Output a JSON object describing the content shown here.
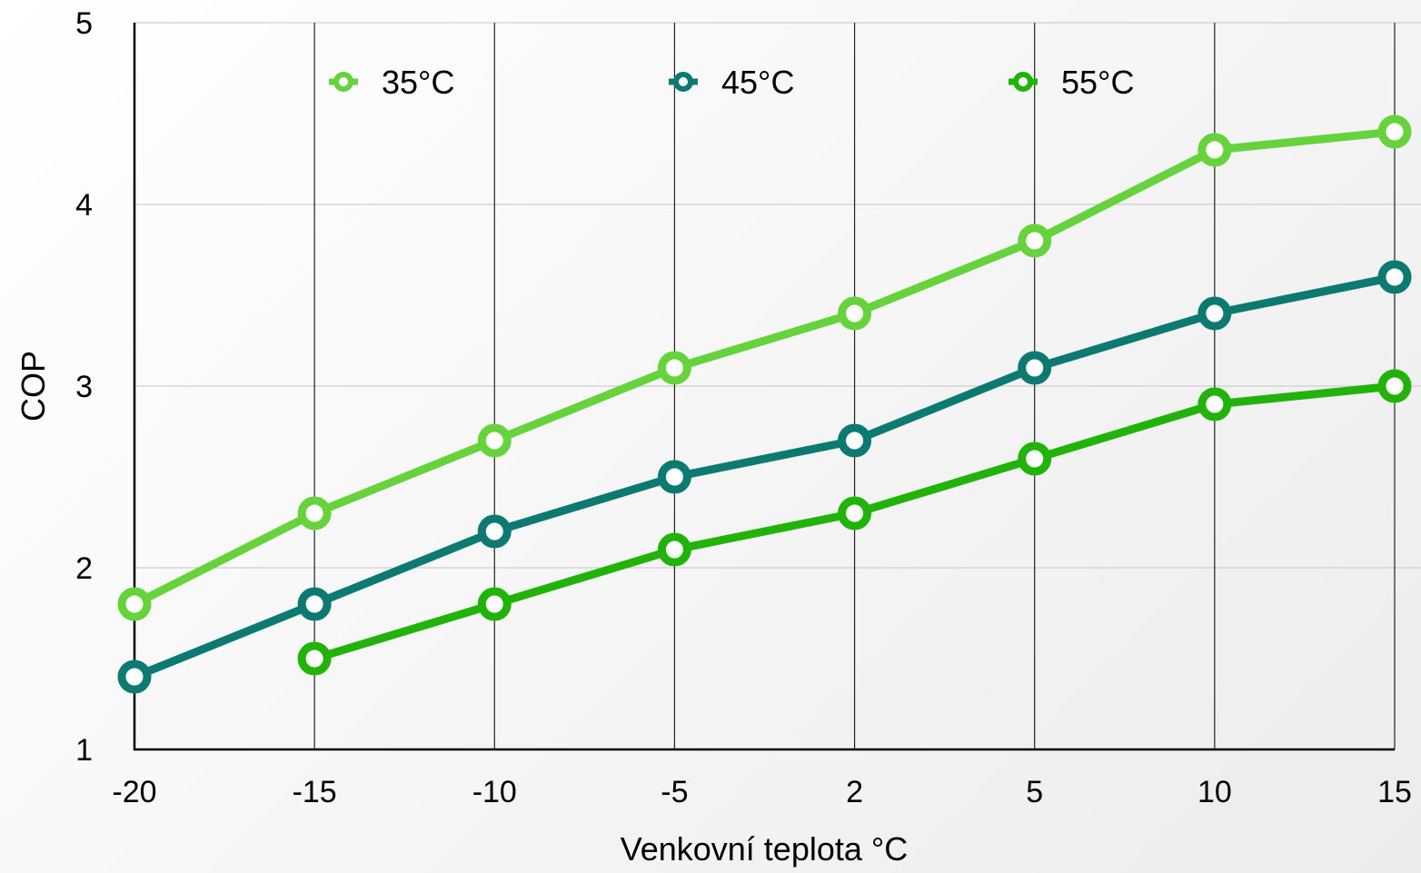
{
  "chart_data": {
    "type": "line",
    "title": "",
    "xlabel": "Venkovní teplota  °C",
    "ylabel": "COP",
    "categories": [
      "-20",
      "-15",
      "-10",
      "-5",
      "2",
      "5",
      "10",
      "15"
    ],
    "yticks": [
      "1",
      "2",
      "3",
      "4",
      "5"
    ],
    "ylim": [
      1,
      5
    ],
    "grid": true,
    "legend_position": "top",
    "series": [
      {
        "name": "35°C",
        "color": "#66d33c",
        "values": [
          1.8,
          2.3,
          2.7,
          3.1,
          3.4,
          3.8,
          4.3,
          4.4
        ]
      },
      {
        "name": "45°C",
        "color": "#0d7a72",
        "values": [
          1.4,
          1.8,
          2.2,
          2.5,
          2.7,
          3.1,
          3.4,
          3.6
        ]
      },
      {
        "name": "55°C",
        "color": "#22b30a",
        "values": [
          null,
          1.5,
          1.8,
          2.1,
          2.3,
          2.6,
          2.9,
          3.0
        ]
      }
    ]
  }
}
